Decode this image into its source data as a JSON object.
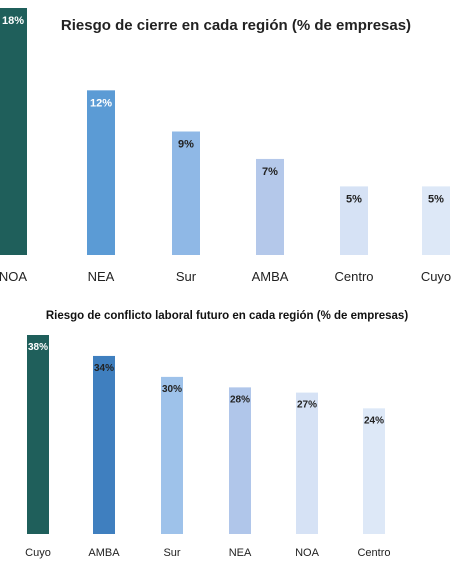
{
  "chart_data": [
    {
      "type": "bar",
      "title": "Riesgo de cierre en cada región (% de empresas)",
      "categories": [
        "NOA",
        "NEA",
        "Sur",
        "AMBA",
        "Centro",
        "Cuyo"
      ],
      "values": [
        18,
        12,
        9,
        7,
        5,
        5
      ],
      "value_labels": [
        "18%",
        "12%",
        "9%",
        "7%",
        "5%",
        "5%"
      ],
      "unit": "%",
      "ylim": [
        0,
        18
      ],
      "grid": false,
      "legend": "none",
      "colors": [
        "#1f5f5b",
        "#5b9bd5",
        "#8fb8e6",
        "#b4c8ea",
        "#d6e2f5",
        "#dde8f7"
      ],
      "label_colors": [
        "#ffffff",
        "#ffffff",
        "#222222",
        "#222222",
        "#222222",
        "#222222"
      ]
    },
    {
      "type": "bar",
      "title": "Riesgo de conflicto laboral futuro en cada región (% de empresas)",
      "categories": [
        "Cuyo",
        "AMBA",
        "Sur",
        "NEA",
        "NOA",
        "Centro"
      ],
      "values": [
        38,
        34,
        30,
        28,
        27,
        24
      ],
      "value_labels": [
        "38%",
        "34%",
        "30%",
        "28%",
        "27%",
        "24%"
      ],
      "unit": "%",
      "ylim": [
        0,
        38
      ],
      "grid": false,
      "legend": "none",
      "colors": [
        "#1f5f5b",
        "#3f7fbf",
        "#9ec2ea",
        "#b0c6ea",
        "#d6e2f5",
        "#dde8f7"
      ],
      "label_colors": [
        "#ffffff",
        "#222222",
        "#222222",
        "#222222",
        "#222222",
        "#222222"
      ]
    }
  ]
}
